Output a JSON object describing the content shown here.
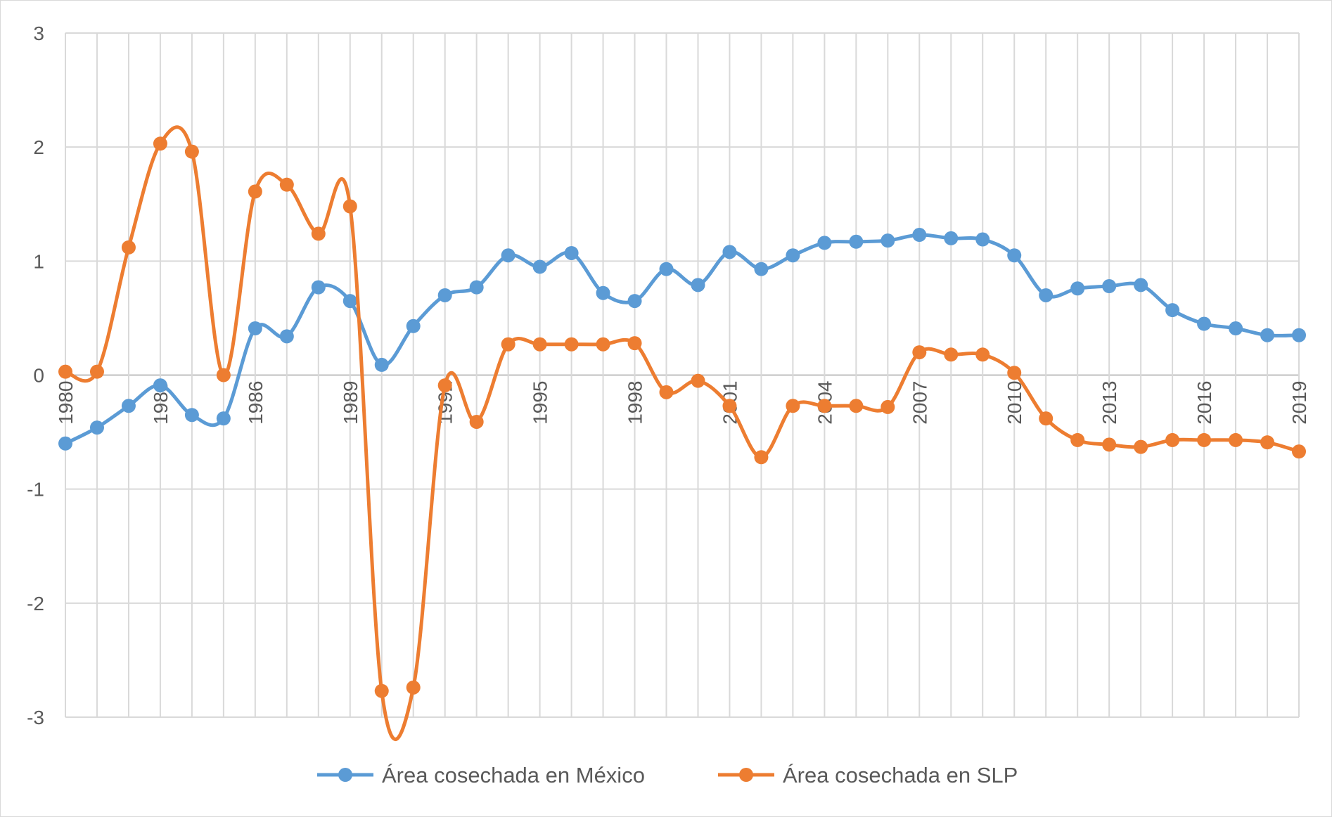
{
  "chart_data": {
    "type": "line",
    "smooth": true,
    "x": [
      1980,
      1981,
      1982,
      1983,
      1984,
      1985,
      1986,
      1987,
      1988,
      1989,
      1990,
      1991,
      1992,
      1993,
      1994,
      1995,
      1996,
      1997,
      1998,
      1999,
      2000,
      2001,
      2002,
      2003,
      2004,
      2005,
      2006,
      2007,
      2008,
      2009,
      2010,
      2011,
      2012,
      2013,
      2014,
      2015,
      2016,
      2017,
      2018,
      2019
    ],
    "x_tick_labels": [
      "1980",
      "1983",
      "1986",
      "1989",
      "1992",
      "1995",
      "1998",
      "2001",
      "2004",
      "2007",
      "2010",
      "2013",
      "2016",
      "2019"
    ],
    "x_tick_values": [
      1980,
      1983,
      1986,
      1989,
      1992,
      1995,
      1998,
      2001,
      2004,
      2007,
      2010,
      2013,
      2016,
      2019
    ],
    "ylim": [
      -3,
      3
    ],
    "y_ticks": [
      3,
      2,
      1,
      0,
      -1,
      -2,
      -3
    ],
    "grid": true,
    "legend_position": "bottom",
    "series": [
      {
        "name": "Área cosechada en México",
        "color": "#5b9bd5",
        "values": [
          -0.6,
          -0.46,
          -0.27,
          -0.09,
          -0.35,
          -0.38,
          0.41,
          0.34,
          0.77,
          0.65,
          0.09,
          0.43,
          0.7,
          0.77,
          1.05,
          0.95,
          1.07,
          0.72,
          0.65,
          0.93,
          0.79,
          1.08,
          0.93,
          1.05,
          1.16,
          1.17,
          1.18,
          1.23,
          1.2,
          1.19,
          1.05,
          0.7,
          0.76,
          0.78,
          0.79,
          0.57,
          0.45,
          0.41,
          0.35,
          0.35
        ]
      },
      {
        "name": "Área cosechada en SLP",
        "color": "#ed7d31",
        "values": [
          0.03,
          0.03,
          1.12,
          2.03,
          1.96,
          0.0,
          1.61,
          1.67,
          1.24,
          1.48,
          -2.77,
          -2.74,
          -0.09,
          -0.41,
          0.27,
          0.27,
          0.27,
          0.27,
          0.28,
          -0.15,
          -0.05,
          -0.27,
          -0.72,
          -0.27,
          -0.27,
          -0.27,
          -0.28,
          0.2,
          0.18,
          0.18,
          0.02,
          -0.38,
          -0.57,
          -0.61,
          -0.63,
          -0.57,
          -0.57,
          -0.57,
          -0.59,
          -0.67
        ]
      }
    ]
  }
}
